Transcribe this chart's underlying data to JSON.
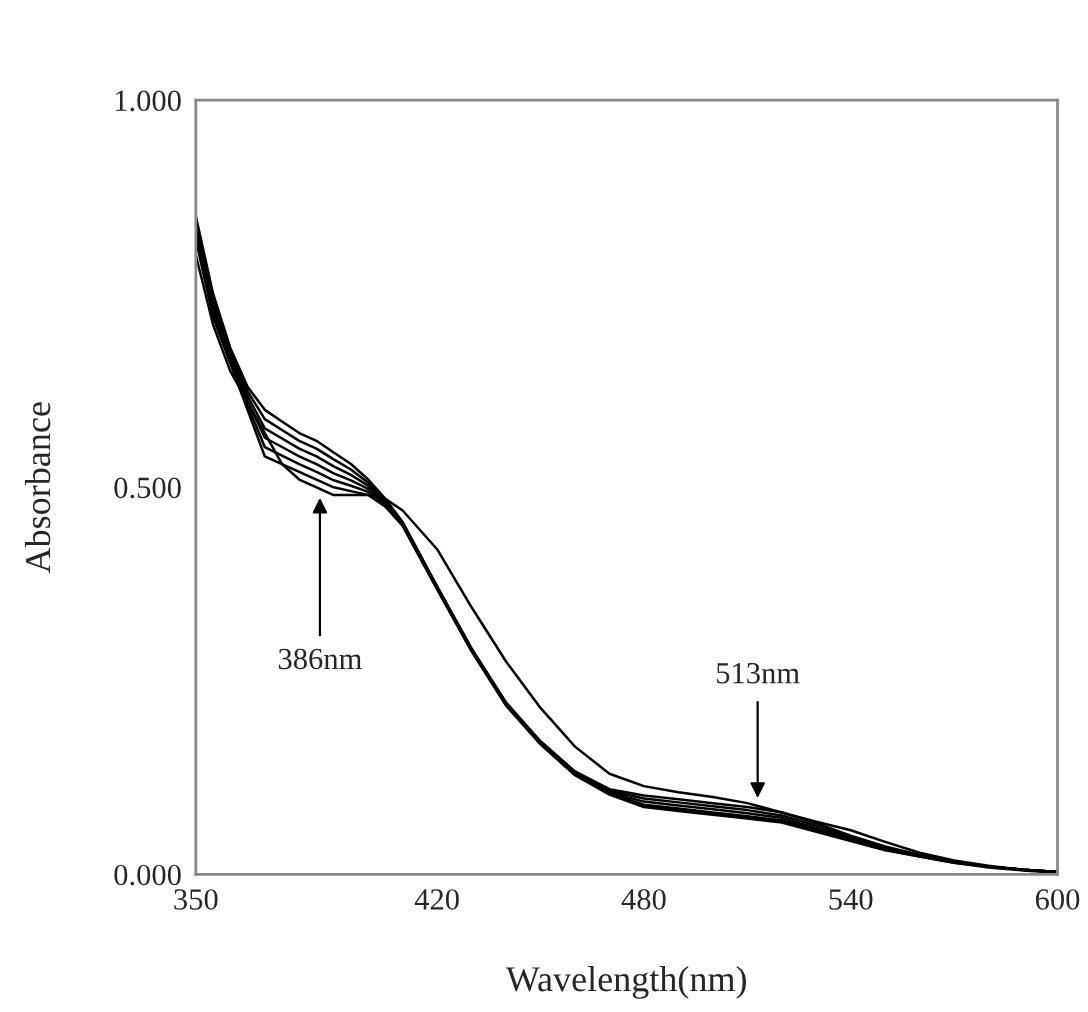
{
  "chart_data": {
    "type": "line",
    "xlabel": "Wavelength(nm)",
    "ylabel": "Absorbance",
    "x": [
      350,
      355,
      360,
      365,
      370,
      375,
      380,
      385,
      390,
      395,
      400,
      405,
      410,
      420,
      430,
      440,
      450,
      460,
      470,
      480,
      490,
      500,
      510,
      520,
      530,
      540,
      550,
      560,
      570,
      580,
      590,
      600
    ],
    "series": [
      {
        "color": "#000000",
        "values": [
          0.85,
          0.75,
          0.68,
          0.63,
          0.6,
          0.585,
          0.57,
          0.56,
          0.545,
          0.53,
          0.51,
          0.485,
          0.455,
          0.372,
          0.292,
          0.222,
          0.172,
          0.133,
          0.11,
          0.102,
          0.097,
          0.092,
          0.087,
          0.08,
          0.066,
          0.05,
          0.036,
          0.025,
          0.016,
          0.01,
          0.006,
          0.003
        ]
      },
      {
        "color": "#000000",
        "values": [
          0.844,
          0.744,
          0.676,
          0.624,
          0.588,
          0.574,
          0.56,
          0.55,
          0.536,
          0.523,
          0.506,
          0.483,
          0.454,
          0.371,
          0.291,
          0.221,
          0.171,
          0.132,
          0.108,
          0.098,
          0.093,
          0.088,
          0.083,
          0.076,
          0.063,
          0.048,
          0.035,
          0.025,
          0.016,
          0.01,
          0.006,
          0.003
        ]
      },
      {
        "color": "#000000",
        "values": [
          0.838,
          0.738,
          0.672,
          0.618,
          0.576,
          0.563,
          0.55,
          0.54,
          0.527,
          0.516,
          0.502,
          0.481,
          0.453,
          0.37,
          0.29,
          0.22,
          0.17,
          0.13,
          0.106,
          0.094,
          0.089,
          0.084,
          0.079,
          0.073,
          0.06,
          0.046,
          0.034,
          0.024,
          0.016,
          0.01,
          0.006,
          0.003
        ]
      },
      {
        "color": "#000000",
        "values": [
          0.832,
          0.732,
          0.668,
          0.612,
          0.564,
          0.552,
          0.54,
          0.53,
          0.518,
          0.509,
          0.498,
          0.479,
          0.452,
          0.37,
          0.29,
          0.22,
          0.17,
          0.13,
          0.105,
          0.09,
          0.085,
          0.08,
          0.075,
          0.07,
          0.058,
          0.045,
          0.033,
          0.024,
          0.016,
          0.01,
          0.006,
          0.003
        ]
      },
      {
        "color": "#000000",
        "values": [
          0.826,
          0.726,
          0.664,
          0.606,
          0.552,
          0.541,
          0.53,
          0.52,
          0.509,
          0.502,
          0.494,
          0.477,
          0.451,
          0.369,
          0.289,
          0.219,
          0.169,
          0.129,
          0.104,
          0.088,
          0.083,
          0.078,
          0.073,
          0.068,
          0.056,
          0.044,
          0.032,
          0.023,
          0.015,
          0.01,
          0.006,
          0.003
        ]
      },
      {
        "color": "#000000",
        "values": [
          0.82,
          0.72,
          0.66,
          0.6,
          0.54,
          0.53,
          0.52,
          0.51,
          0.5,
          0.495,
          0.49,
          0.475,
          0.45,
          0.368,
          0.288,
          0.218,
          0.168,
          0.128,
          0.103,
          0.087,
          0.082,
          0.077,
          0.072,
          0.067,
          0.055,
          0.043,
          0.031,
          0.023,
          0.015,
          0.009,
          0.005,
          0.002
        ]
      },
      {
        "color": "#000000",
        "values": [
          0.8,
          0.71,
          0.65,
          0.61,
          0.57,
          0.53,
          0.51,
          0.5,
          0.49,
          0.49,
          0.49,
          0.485,
          0.47,
          0.42,
          0.345,
          0.275,
          0.215,
          0.165,
          0.13,
          0.114,
          0.106,
          0.1,
          0.092,
          0.08,
          0.068,
          0.057,
          0.042,
          0.028,
          0.018,
          0.011,
          0.006,
          0.003
        ]
      }
    ],
    "xlim": [
      350,
      600
    ],
    "xticks": [
      350,
      420,
      480,
      540,
      600
    ],
    "ylim": [
      0,
      1
    ],
    "yticks": [
      {
        "value": 0,
        "label": "0.000"
      },
      {
        "value": 0.5,
        "label": "0.500"
      },
      {
        "value": 1,
        "label": "1.000"
      }
    ],
    "line_style": "solid",
    "annotations": [
      {
        "text": "386nm",
        "x": 386,
        "y": 0.49
      },
      {
        "text": "513nm",
        "x": 513,
        "y": 0.095
      }
    ]
  }
}
